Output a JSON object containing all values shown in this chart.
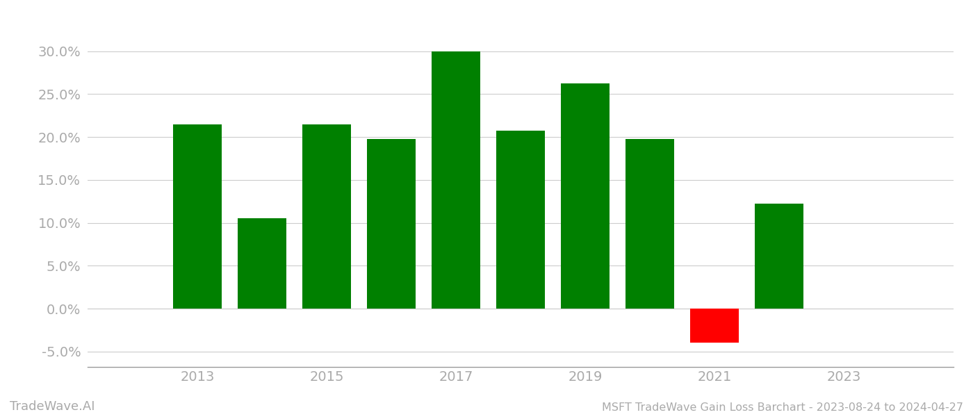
{
  "years": [
    2013,
    2014,
    2015,
    2016,
    2017,
    2018,
    2019,
    2020,
    2021,
    2022
  ],
  "values": [
    0.215,
    0.105,
    0.215,
    0.198,
    0.3,
    0.207,
    0.262,
    0.198,
    -0.04,
    0.122
  ],
  "bar_colors": [
    "#008000",
    "#008000",
    "#008000",
    "#008000",
    "#008000",
    "#008000",
    "#008000",
    "#008000",
    "#ff0000",
    "#008000"
  ],
  "title": "MSFT TradeWave Gain Loss Barchart - 2023-08-24 to 2024-04-27",
  "watermark": "TradeWave.AI",
  "ylim_min": -0.068,
  "ylim_max": 0.345,
  "yticks": [
    -0.05,
    0.0,
    0.05,
    0.1,
    0.15,
    0.2,
    0.25,
    0.3
  ],
  "xticks": [
    2013,
    2015,
    2017,
    2019,
    2021,
    2023
  ],
  "xlim_min": 2011.3,
  "xlim_max": 2024.7,
  "background_color": "#ffffff",
  "bar_width": 0.75,
  "grid_color": "#cccccc",
  "title_fontsize": 11.5,
  "watermark_fontsize": 13,
  "tick_label_color": "#aaaaaa",
  "tick_fontsize": 14,
  "spine_color": "#999999"
}
